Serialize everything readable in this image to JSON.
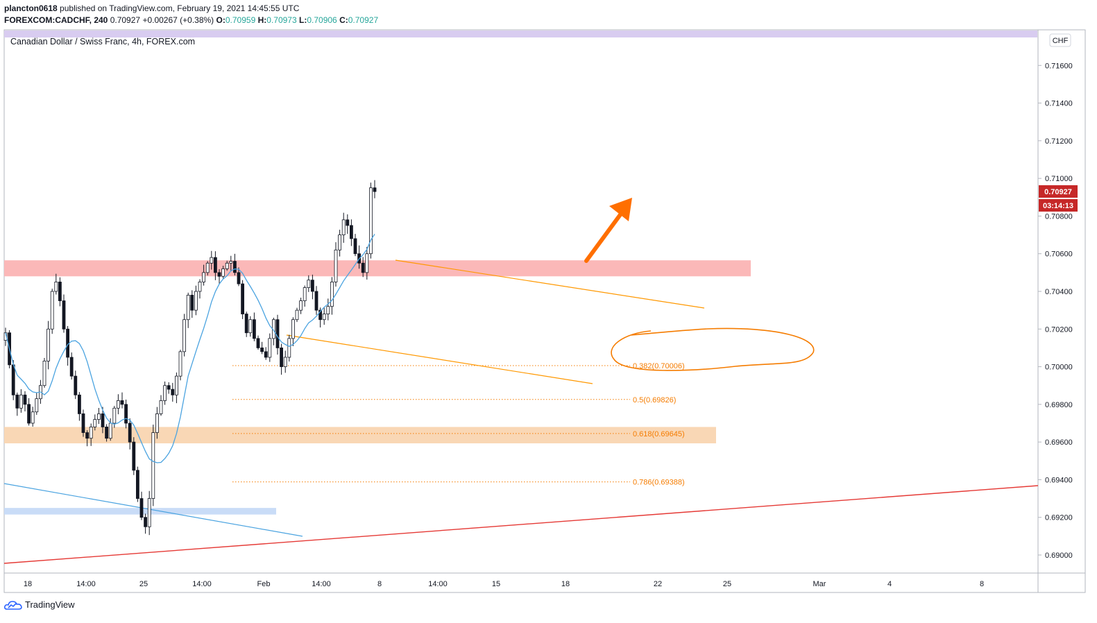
{
  "header": {
    "publisher": "plancton0618",
    "published_text": "published on TradingView.com, February 19, 2021 14:45:55 UTC",
    "symbol": "FOREXCOM:CADCHF, 240",
    "last": "0.70927",
    "change": "+0.00267 (+0.38%)",
    "o_label": "O:",
    "o_value": "0.70959",
    "h_label": "H:",
    "h_value": "0.70973",
    "l_label": "L:",
    "l_value": "0.70906",
    "c_label": "C:",
    "c_value": "0.70927"
  },
  "footer": {
    "brand": "TradingView"
  },
  "colors": {
    "up": "#26a69a",
    "candle": "#131722",
    "ma": "#4aa3e0",
    "resistance_zone": "#fbb8b8",
    "support_zone": "#f9d7b5",
    "low_zone": "#c9dcf7",
    "fib": "#f57c00",
    "trend_red": "#e53935",
    "trend_blue": "#4aa3e0",
    "channel": "#ff9800",
    "price_tag": "#c62828",
    "purple_band": "#d8ccf0"
  },
  "chart_data": {
    "type": "candlestick",
    "title": "Canadian Dollar / Swiss Franc, 4h, FOREX.com",
    "currency_button": "CHF",
    "ylim": [
      0.6885,
      0.71775
    ],
    "y_ticks": [
      "0.71600",
      "0.71400",
      "0.71200",
      "0.71000",
      "0.70800",
      "0.70600",
      "0.70400",
      "0.70200",
      "0.70000",
      "0.69800",
      "0.69600",
      "0.69400",
      "0.69200",
      "0.69000"
    ],
    "x_ticks": [
      "18",
      "14:00",
      "25",
      "14:00",
      "Feb",
      "14:00",
      "8",
      "14:00",
      "15",
      "18",
      "22",
      "25",
      "Mar",
      "4",
      "8"
    ],
    "last_price_label": "0.70927",
    "countdown_label": "03:14:13",
    "fib_levels": [
      {
        "label": "0.382(0.70006)",
        "value": 0.70006
      },
      {
        "label": "0.5(0.69826)",
        "value": 0.69826
      },
      {
        "label": "0.618(0.69645)",
        "value": 0.69645
      },
      {
        "label": "0.786(0.69388)",
        "value": 0.69388
      }
    ],
    "zones": [
      {
        "name": "resistance",
        "top": 0.70565,
        "bottom": 0.7048
      },
      {
        "name": "support",
        "top": 0.6968,
        "bottom": 0.69593
      },
      {
        "name": "low",
        "top": 0.6925,
        "bottom": 0.69215
      }
    ],
    "close_path": [
      0.7018,
      0.7001,
      0.6985,
      0.6978,
      0.6985,
      0.698,
      0.697,
      0.6976,
      0.6983,
      0.699,
      0.7003,
      0.702,
      0.704,
      0.7045,
      0.7035,
      0.702,
      0.7005,
      0.6995,
      0.6985,
      0.6975,
      0.6965,
      0.6962,
      0.6968,
      0.6972,
      0.6975,
      0.6968,
      0.6962,
      0.697,
      0.6978,
      0.6982,
      0.698,
      0.697,
      0.696,
      0.6945,
      0.693,
      0.692,
      0.6915,
      0.693,
      0.6965,
      0.6975,
      0.6982,
      0.699,
      0.6988,
      0.6985,
      0.6995,
      0.7008,
      0.7025,
      0.7038,
      0.703,
      0.704,
      0.7045,
      0.705,
      0.7055,
      0.7058,
      0.705,
      0.7048,
      0.7052,
      0.7055,
      0.7056,
      0.705,
      0.7044,
      0.7028,
      0.7018,
      0.7025,
      0.7015,
      0.701,
      0.7008,
      0.7005,
      0.7015,
      0.7025,
      0.701,
      0.7,
      0.7005,
      0.7015,
      0.7025,
      0.703,
      0.7035,
      0.7042,
      0.7046,
      0.704,
      0.703,
      0.7025,
      0.7028,
      0.7032,
      0.7045,
      0.7062,
      0.707,
      0.7078,
      0.7075,
      0.7068,
      0.706,
      0.7055,
      0.705,
      0.706,
      0.7095,
      0.7093
    ]
  }
}
